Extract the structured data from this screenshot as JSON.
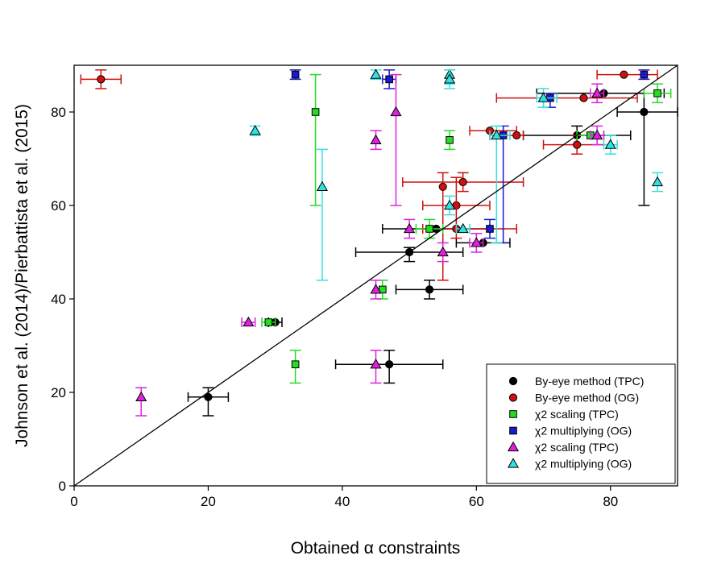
{
  "chart_data": {
    "type": "scatter",
    "xlabel": "Obtained α constraints",
    "ylabel": "Johnson et al. (2014)/Pierbattista et al. (2015)",
    "xlim": [
      0,
      90
    ],
    "ylim": [
      0,
      90
    ],
    "xticks": [
      "0",
      "20",
      "40",
      "60",
      "80"
    ],
    "yticks": [
      "0",
      "20",
      "40",
      "60",
      "80"
    ],
    "reference_line": "y = x",
    "grid": false,
    "legend_position": "bottom-right",
    "series": [
      {
        "name": "By-eye method (TPC)",
        "color": "#000000",
        "marker": "circle",
        "points": [
          {
            "x": 20,
            "y": 19,
            "xerr": [
              17,
              23
            ],
            "yerr": [
              15,
              21
            ]
          },
          {
            "x": 30,
            "y": 35,
            "xerr": [
              29,
              31
            ]
          },
          {
            "x": 47,
            "y": 26,
            "xerr": [
              39,
              55
            ],
            "yerr": [
              22,
              29
            ]
          },
          {
            "x": 53,
            "y": 42,
            "xerr": [
              48,
              58
            ],
            "yerr": [
              40,
              44
            ]
          },
          {
            "x": 50,
            "y": 50,
            "xerr": [
              42,
              58
            ],
            "yerr": [
              48,
              51
            ]
          },
          {
            "x": 54,
            "y": 55,
            "xerr": [
              46,
              62
            ]
          },
          {
            "x": 61,
            "y": 52,
            "xerr": [
              57,
              65
            ]
          },
          {
            "x": 75,
            "y": 75,
            "xerr": [
              67,
              83
            ],
            "yerr": [
              73,
              77
            ]
          },
          {
            "x": 79,
            "y": 84,
            "xerr": [
              69,
              88
            ]
          },
          {
            "x": 85,
            "y": 80,
            "xerr": [
              81,
              90
            ],
            "yerr": [
              60,
              84
            ]
          }
        ]
      },
      {
        "name": "By-eye method (OG)",
        "color": "#d01010",
        "marker": "circle",
        "points": [
          {
            "x": 4,
            "y": 87,
            "xerr": [
              1,
              7
            ],
            "yerr": [
              85,
              89
            ]
          },
          {
            "x": 55,
            "y": 64,
            "yerr": [
              44,
              67
            ]
          },
          {
            "x": 58,
            "y": 65,
            "xerr": [
              49,
              67
            ],
            "yerr": [
              63,
              67
            ]
          },
          {
            "x": 57,
            "y": 60,
            "xerr": [
              52,
              62
            ]
          },
          {
            "x": 57,
            "y": 55,
            "xerr": [
              52,
              66
            ],
            "yerr": [
              53,
              66
            ]
          },
          {
            "x": 62,
            "y": 76,
            "xerr": [
              59,
              66
            ]
          },
          {
            "x": 66,
            "y": 75,
            "xerr": [
              62,
              67
            ]
          },
          {
            "x": 75,
            "y": 73,
            "xerr": [
              70,
              80
            ],
            "yerr": [
              71,
              75
            ]
          },
          {
            "x": 82,
            "y": 88,
            "xerr": [
              78,
              87
            ]
          },
          {
            "x": 76,
            "y": 83,
            "xerr": [
              63,
              84
            ]
          }
        ]
      },
      {
        "name": "χ2  scaling (TPC)",
        "color": "#22dd22",
        "marker": "square",
        "points": [
          {
            "x": 33,
            "y": 26,
            "yerr": [
              22,
              29
            ]
          },
          {
            "x": 29,
            "y": 35,
            "xerr": [
              28,
              30
            ]
          },
          {
            "x": 36,
            "y": 80,
            "yerr": [
              60,
              88
            ]
          },
          {
            "x": 46,
            "y": 42,
            "yerr": [
              40,
              44
            ]
          },
          {
            "x": 53,
            "y": 55,
            "xerr": [
              51,
              55
            ],
            "yerr": [
              53,
              57
            ]
          },
          {
            "x": 56,
            "y": 74,
            "yerr": [
              72,
              76
            ]
          },
          {
            "x": 77,
            "y": 75,
            "xerr": [
              75,
              79
            ]
          },
          {
            "x": 87,
            "y": 84,
            "xerr": [
              85,
              89
            ],
            "yerr": [
              82,
              86
            ]
          }
        ]
      },
      {
        "name": "χ2  multiplying (OG)",
        "color": "#1a1acc",
        "marker": "square",
        "points": [
          {
            "x": 33,
            "y": 88,
            "yerr": [
              87,
              89
            ]
          },
          {
            "x": 47,
            "y": 87,
            "xerr": [
              46,
              48
            ],
            "yerr": [
              85,
              89
            ]
          },
          {
            "x": 62,
            "y": 55,
            "yerr": [
              53,
              57
            ]
          },
          {
            "x": 64,
            "y": 75,
            "yerr": [
              52,
              77
            ]
          },
          {
            "x": 71,
            "y": 83,
            "xerr": [
              70,
              72
            ],
            "yerr": [
              81,
              84
            ]
          },
          {
            "x": 85,
            "y": 88,
            "yerr": [
              87,
              89
            ]
          }
        ]
      },
      {
        "name": "χ2 scaling (TPC)",
        "color": "#dd22dd",
        "marker": "triangle",
        "points": [
          {
            "x": 10,
            "y": 19,
            "yerr": [
              15,
              21
            ]
          },
          {
            "x": 26,
            "y": 35,
            "xerr": [
              25,
              27
            ]
          },
          {
            "x": 45,
            "y": 42,
            "yerr": [
              40,
              44
            ]
          },
          {
            "x": 45,
            "y": 26,
            "yerr": [
              22,
              29
            ]
          },
          {
            "x": 45,
            "y": 74,
            "yerr": [
              72,
              76
            ]
          },
          {
            "x": 48,
            "y": 80,
            "yerr": [
              60,
              88
            ]
          },
          {
            "x": 50,
            "y": 55,
            "yerr": [
              53,
              57
            ]
          },
          {
            "x": 55,
            "y": 50,
            "yerr": [
              48,
              52
            ]
          },
          {
            "x": 60,
            "y": 52,
            "xerr": [
              59,
              61
            ],
            "yerr": [
              50,
              54
            ]
          },
          {
            "x": 78,
            "y": 75,
            "xerr": [
              77,
              79
            ],
            "yerr": [
              73,
              77
            ]
          },
          {
            "x": 78,
            "y": 84,
            "xerr": [
              77,
              79
            ],
            "yerr": [
              82,
              86
            ]
          }
        ]
      },
      {
        "name": "χ2 multiplying (OG)",
        "color": "#33e0e0",
        "marker": "triangle",
        "points": [
          {
            "x": 27,
            "y": 76,
            "yerr": [
              75,
              77
            ]
          },
          {
            "x": 37,
            "y": 64,
            "yerr": [
              44,
              72
            ]
          },
          {
            "x": 45,
            "y": 88,
            "yerr": [
              87,
              89
            ]
          },
          {
            "x": 56,
            "y": 88,
            "yerr": [
              86,
              89
            ]
          },
          {
            "x": 56,
            "y": 87,
            "yerr": [
              85,
              89
            ]
          },
          {
            "x": 56,
            "y": 60,
            "yerr": [
              58,
              62
            ]
          },
          {
            "x": 58,
            "y": 55,
            "xerr": [
              57,
              59
            ]
          },
          {
            "x": 63,
            "y": 75,
            "xerr": [
              62,
              65
            ],
            "yerr": [
              52,
              77
            ]
          },
          {
            "x": 70,
            "y": 83,
            "xerr": [
              69,
              72
            ],
            "yerr": [
              81,
              85
            ]
          },
          {
            "x": 80,
            "y": 73,
            "xerr": [
              79,
              81
            ],
            "yerr": [
              71,
              75
            ]
          },
          {
            "x": 87,
            "y": 65,
            "yerr": [
              63,
              67
            ]
          }
        ]
      }
    ]
  }
}
